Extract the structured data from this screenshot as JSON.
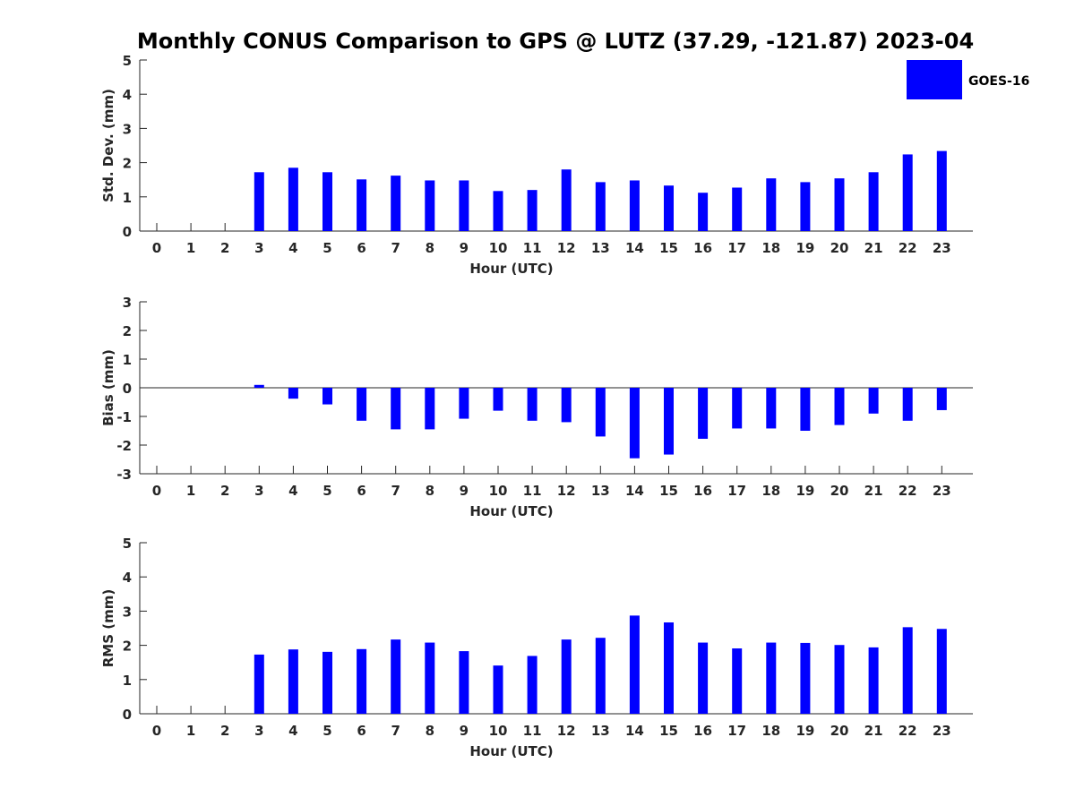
{
  "title": "Monthly CONUS Comparison to GPS @ LUTZ (37.29, -121.87) 2023-04",
  "legend": {
    "label": "GOES-16",
    "color": "#0000ff",
    "placement": "top-right"
  },
  "chart_data": [
    {
      "type": "bar",
      "xlabel": "Hour (UTC)",
      "ylabel": "Std. Dev. (mm)",
      "ylim": [
        0,
        5
      ],
      "yticks": [
        0,
        1,
        2,
        3,
        4,
        5
      ],
      "categories": [
        "0",
        "1",
        "2",
        "3",
        "4",
        "5",
        "6",
        "7",
        "8",
        "9",
        "10",
        "11",
        "12",
        "13",
        "14",
        "15",
        "16",
        "17",
        "18",
        "19",
        "20",
        "21",
        "22",
        "23"
      ],
      "series": [
        {
          "name": "GOES-16",
          "values": [
            null,
            null,
            null,
            1.72,
            1.85,
            1.72,
            1.51,
            1.62,
            1.48,
            1.48,
            1.17,
            1.2,
            1.8,
            1.43,
            1.48,
            1.33,
            1.12,
            1.27,
            1.54,
            1.43,
            1.54,
            1.72,
            2.24,
            2.34
          ]
        }
      ]
    },
    {
      "type": "bar",
      "xlabel": "Hour (UTC)",
      "ylabel": "Bias (mm)",
      "ylim": [
        -3,
        3
      ],
      "yticks": [
        -3,
        -2,
        -1,
        0,
        1,
        2,
        3
      ],
      "categories": [
        "0",
        "1",
        "2",
        "3",
        "4",
        "5",
        "6",
        "7",
        "8",
        "9",
        "10",
        "11",
        "12",
        "13",
        "14",
        "15",
        "16",
        "17",
        "18",
        "19",
        "20",
        "21",
        "22",
        "23"
      ],
      "series": [
        {
          "name": "GOES-16",
          "values": [
            null,
            null,
            null,
            0.1,
            -0.38,
            -0.58,
            -1.15,
            -1.45,
            -1.45,
            -1.08,
            -0.8,
            -1.15,
            -1.2,
            -1.7,
            -2.46,
            -2.33,
            -1.78,
            -1.42,
            -1.42,
            -1.5,
            -1.3,
            -0.9,
            -1.15,
            -0.78
          ]
        }
      ]
    },
    {
      "type": "bar",
      "xlabel": "Hour (UTC)",
      "ylabel": "RMS (mm)",
      "ylim": [
        0,
        5
      ],
      "yticks": [
        0,
        1,
        2,
        3,
        4,
        5
      ],
      "categories": [
        "0",
        "1",
        "2",
        "3",
        "4",
        "5",
        "6",
        "7",
        "8",
        "9",
        "10",
        "11",
        "12",
        "13",
        "14",
        "15",
        "16",
        "17",
        "18",
        "19",
        "20",
        "21",
        "22",
        "23"
      ],
      "series": [
        {
          "name": "GOES-16",
          "values": [
            null,
            null,
            null,
            1.73,
            1.88,
            1.81,
            1.89,
            2.17,
            2.08,
            1.83,
            1.41,
            1.69,
            2.17,
            2.22,
            2.87,
            2.67,
            2.08,
            1.91,
            2.08,
            2.07,
            2.01,
            1.94,
            2.53,
            2.48
          ]
        }
      ]
    }
  ]
}
